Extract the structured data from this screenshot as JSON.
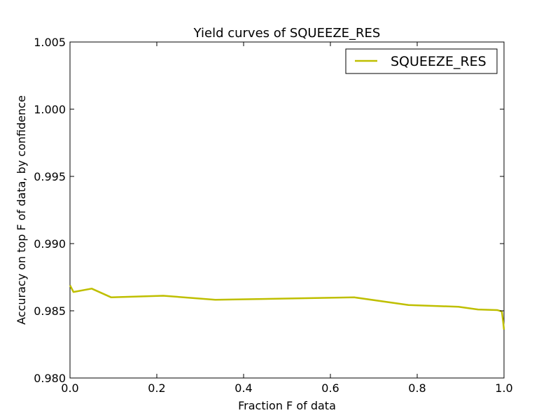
{
  "chart_data": {
    "type": "line",
    "title": "Yield curves of SQUEEZE_RES",
    "xlabel": "Fraction F of data",
    "ylabel": "Accuracy on top F of data, by confidence",
    "xlim": [
      0.0,
      1.0
    ],
    "ylim": [
      0.98,
      1.005
    ],
    "xticks": [
      "0.0",
      "0.2",
      "0.4",
      "0.6",
      "0.8",
      "1.0"
    ],
    "yticks": [
      "0.980",
      "0.985",
      "0.990",
      "0.995",
      "1.000",
      "1.005"
    ],
    "grid": false,
    "legend_position": "top-right",
    "series": [
      {
        "name": "SQUEEZE_RES",
        "color": "#bfbf00",
        "x": [
          0.0,
          0.008,
          0.05,
          0.095,
          0.215,
          0.335,
          0.655,
          0.78,
          0.895,
          0.94,
          0.985,
          0.995,
          0.998,
          1.0
        ],
        "y": [
          0.9869,
          0.9864,
          0.98665,
          0.986,
          0.98612,
          0.98582,
          0.986,
          0.98543,
          0.9853,
          0.9851,
          0.98505,
          0.98495,
          0.9842,
          0.9836
        ]
      }
    ]
  }
}
